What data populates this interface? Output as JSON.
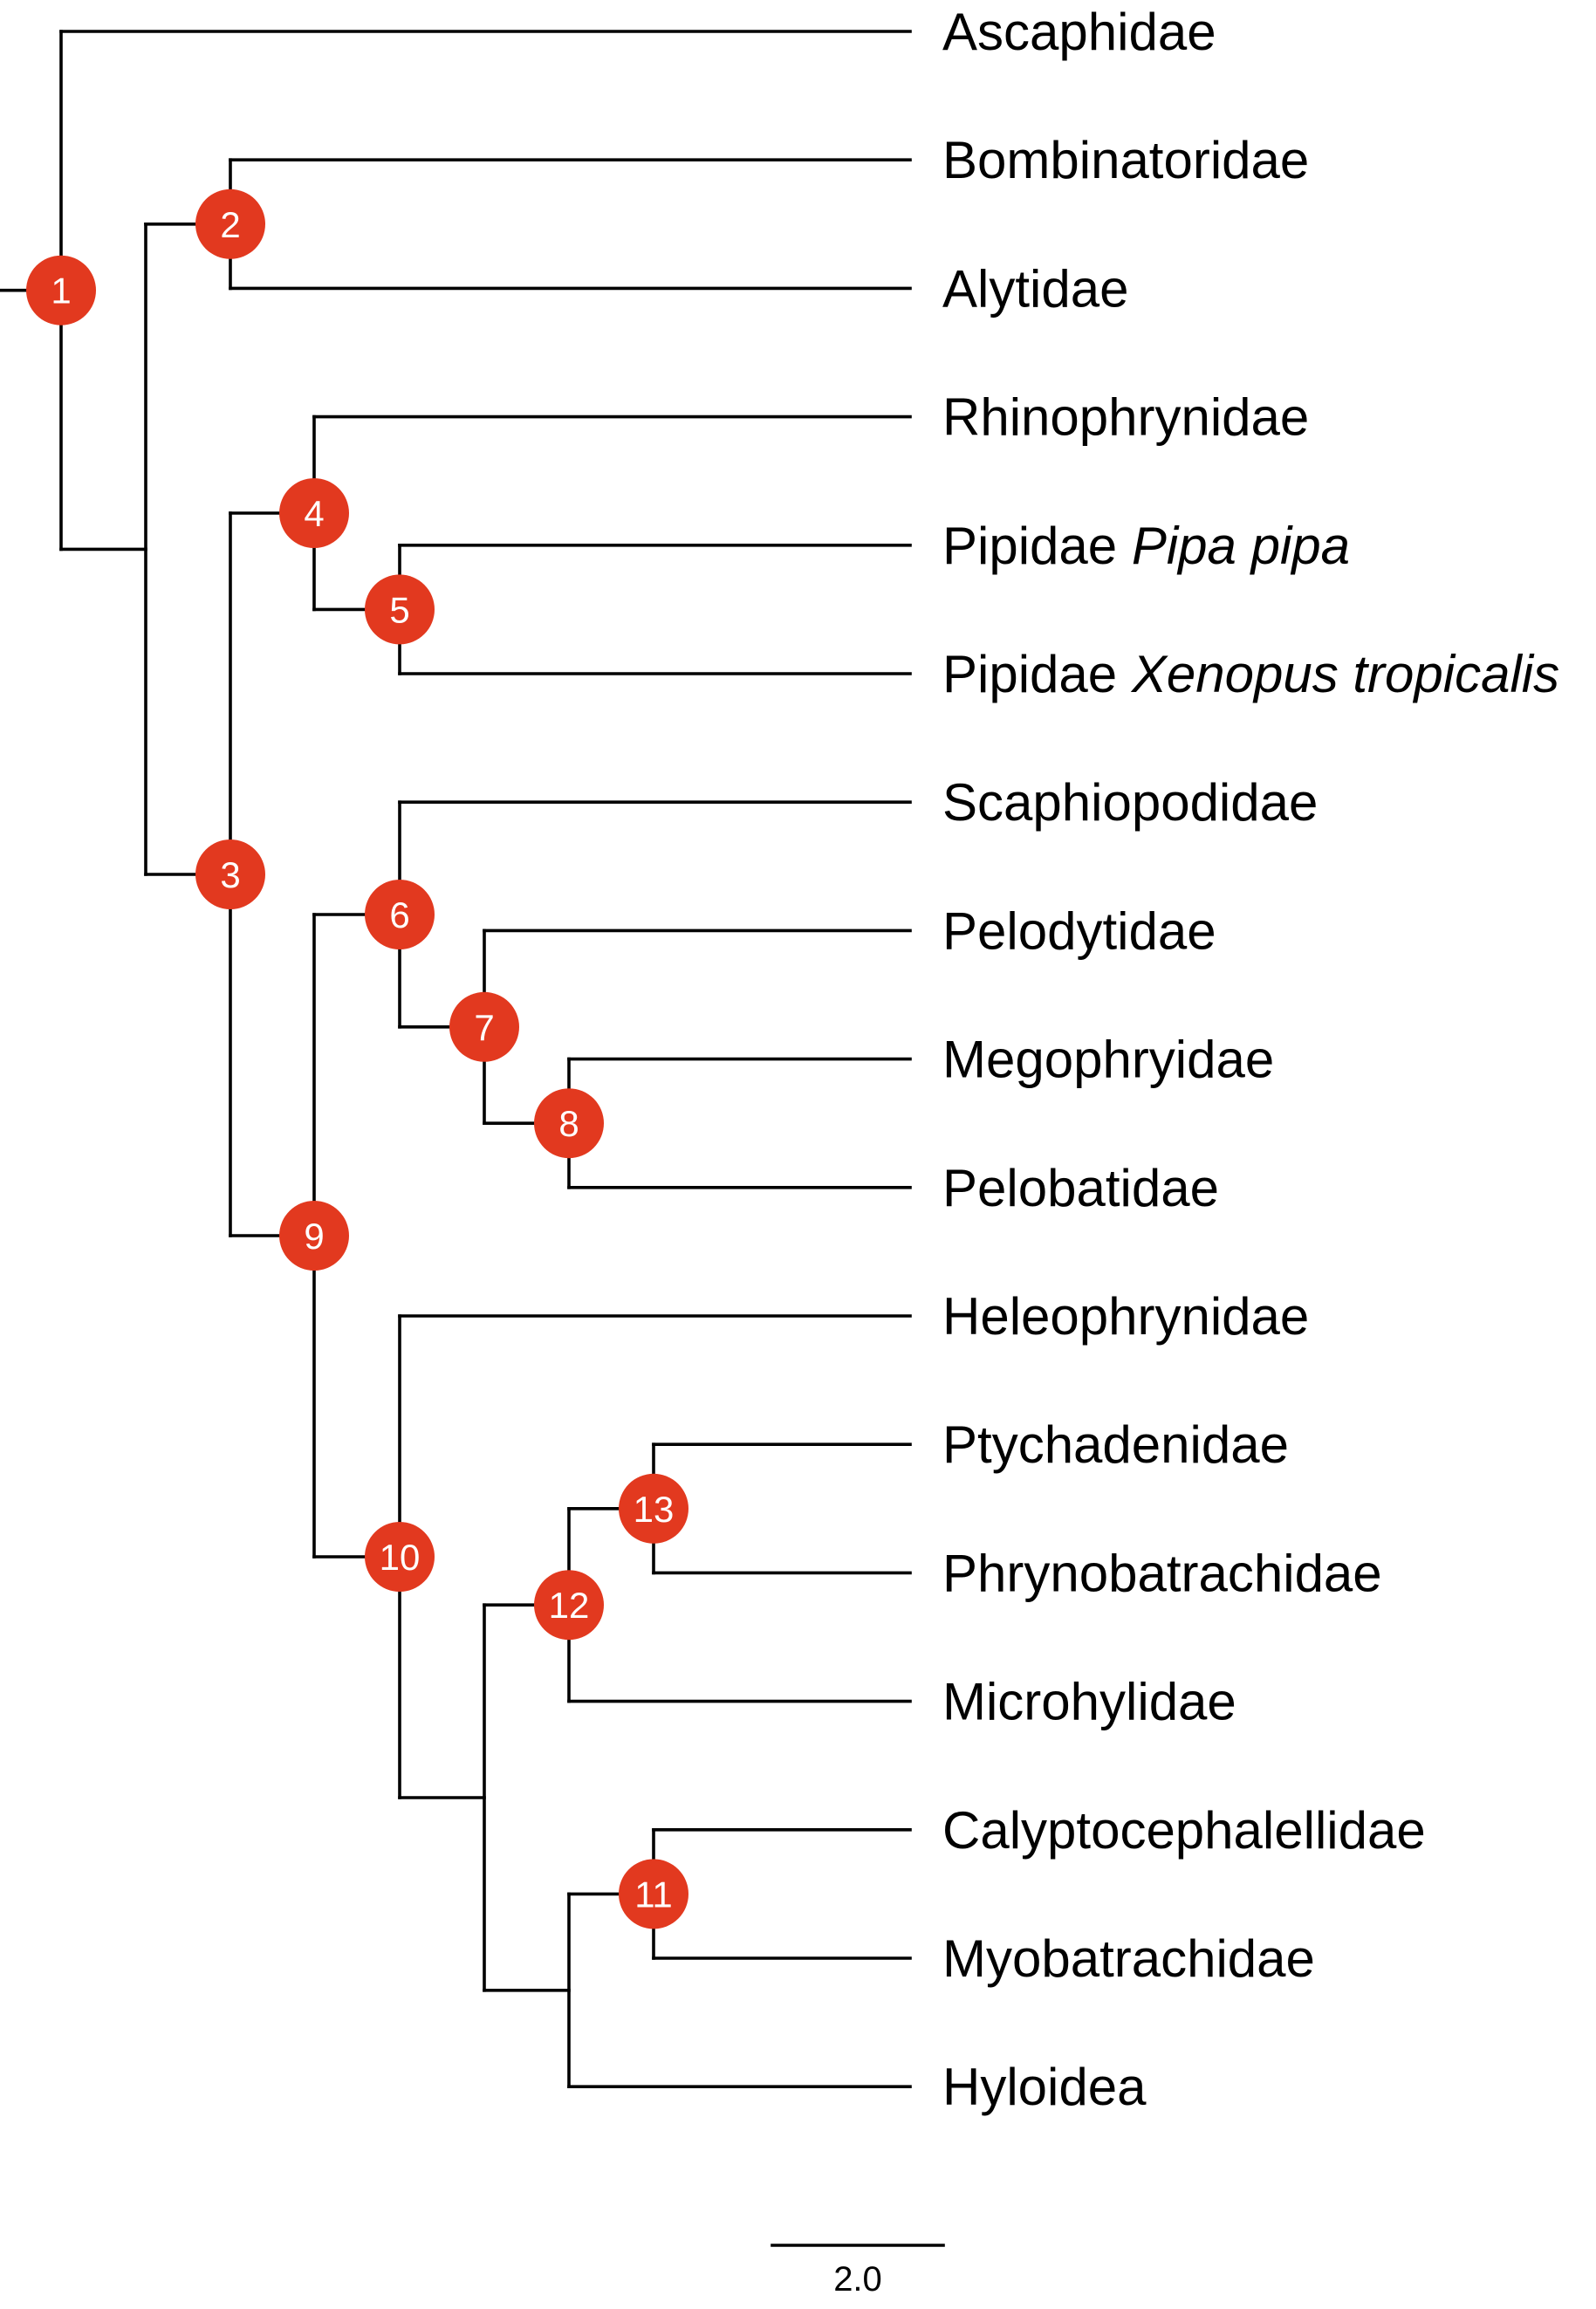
{
  "colors": {
    "node": "#E2391F",
    "branch": "#000000",
    "node_text": "#ffffff"
  },
  "tips": [
    {
      "id": "t1",
      "name": "Ascaphidae",
      "italic": ""
    },
    {
      "id": "t2",
      "name": "Bombinatoridae",
      "italic": ""
    },
    {
      "id": "t3",
      "name": "Alytidae",
      "italic": ""
    },
    {
      "id": "t4",
      "name": "Rhinophrynidae",
      "italic": ""
    },
    {
      "id": "t5",
      "name": "Pipidae",
      "italic": "Pipa pipa"
    },
    {
      "id": "t6",
      "name": "Pipidae",
      "italic": "Xenopus tropicalis"
    },
    {
      "id": "t7",
      "name": "Scaphiopodidae",
      "italic": ""
    },
    {
      "id": "t8",
      "name": "Pelodytidae",
      "italic": ""
    },
    {
      "id": "t9",
      "name": "Megophryidae",
      "italic": ""
    },
    {
      "id": "t10",
      "name": "Pelobatidae",
      "italic": ""
    },
    {
      "id": "t11",
      "name": "Heleophrynidae",
      "italic": ""
    },
    {
      "id": "t12",
      "name": "Ptychadenidae",
      "italic": ""
    },
    {
      "id": "t13",
      "name": "Phrynobatrachidae",
      "italic": ""
    },
    {
      "id": "t14",
      "name": "Microhylidae",
      "italic": ""
    },
    {
      "id": "t15",
      "name": "Calyptocephalellidae",
      "italic": ""
    },
    {
      "id": "t16",
      "name": "Myobatrachidae",
      "italic": ""
    },
    {
      "id": "t17",
      "name": "Hyloidea",
      "italic": ""
    }
  ],
  "nodes": [
    {
      "id": "n1",
      "label": "1",
      "children": [
        "t1",
        "n2"
      ]
    },
    {
      "id": "n2",
      "label": "",
      "children": [
        "n2b",
        "n3"
      ]
    },
    {
      "id": "n2b",
      "label": "2",
      "children": [
        "t2",
        "t3"
      ]
    },
    {
      "id": "n3",
      "label": "3",
      "children": [
        "n4",
        "n9"
      ]
    },
    {
      "id": "n4",
      "label": "4",
      "children": [
        "t4",
        "n5"
      ]
    },
    {
      "id": "n5",
      "label": "5",
      "children": [
        "t5",
        "t6"
      ]
    },
    {
      "id": "n9",
      "label": "9",
      "children": [
        "n6",
        "n10"
      ]
    },
    {
      "id": "n6",
      "label": "6",
      "children": [
        "t7",
        "n7"
      ]
    },
    {
      "id": "n7",
      "label": "7",
      "children": [
        "t8",
        "n8"
      ]
    },
    {
      "id": "n8",
      "label": "8",
      "children": [
        "t9",
        "t10"
      ]
    },
    {
      "id": "n10",
      "label": "10",
      "children": [
        "t11",
        "na"
      ]
    },
    {
      "id": "na",
      "label": "",
      "children": [
        "n12",
        "nb"
      ]
    },
    {
      "id": "n12",
      "label": "12",
      "children": [
        "n13",
        "t14"
      ]
    },
    {
      "id": "n13",
      "label": "13",
      "children": [
        "t12",
        "t13"
      ]
    },
    {
      "id": "nb",
      "label": "",
      "children": [
        "n11",
        "t17"
      ]
    },
    {
      "id": "n11",
      "label": "11",
      "children": [
        "t15",
        "t16"
      ]
    }
  ],
  "scale_bar": {
    "label": "2.0"
  }
}
